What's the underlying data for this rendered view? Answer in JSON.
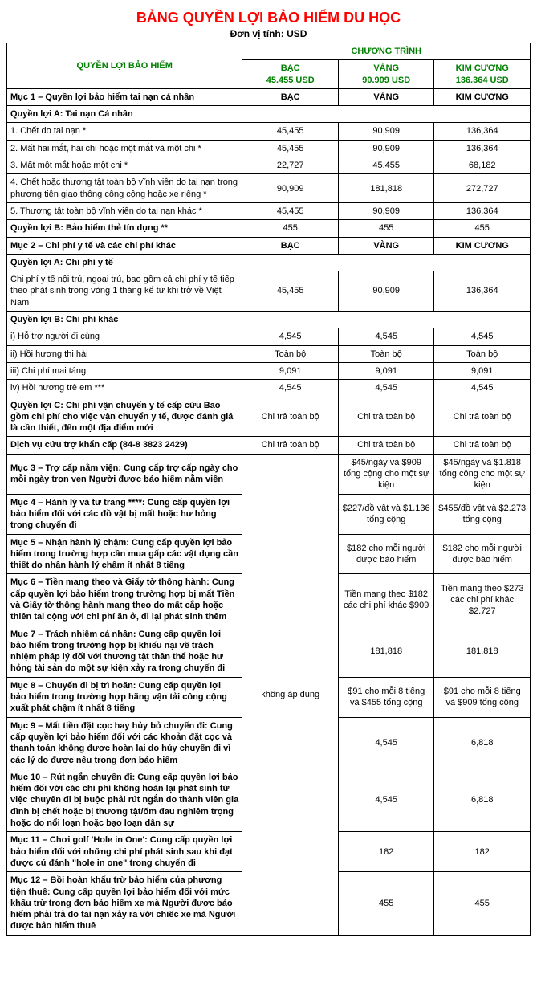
{
  "colors": {
    "title": "#ff0000",
    "header_green": "#008000",
    "text": "#000000",
    "border": "#000000",
    "background": "#ffffff"
  },
  "title": "BẢNG QUYỀN LỢI BẢO HIỂM DU HỌC",
  "subtitle": "Đơn vị tính: USD",
  "header": {
    "benefit": "QUYỀN LỢI BẢO HIỂM",
    "program": "CHƯƠNG TRÌNH",
    "tiers": [
      {
        "name": "BẠC",
        "price": "45.455 USD"
      },
      {
        "name": "VÀNG",
        "price": "90.909 USD"
      },
      {
        "name": "KIM CƯƠNG",
        "price": "136.364 USD"
      }
    ]
  },
  "rows": [
    {
      "type": "section",
      "label": "Mục 1 – Quyền lợi bảo hiểm tai nạn cá nhân",
      "vals": [
        "BẠC",
        "VÀNG",
        "KIM CƯƠNG"
      ],
      "bold_vals": true
    },
    {
      "type": "subhead",
      "label": "Quyền lợi A: Tai nạn Cá nhân"
    },
    {
      "type": "data",
      "label": "1. Chết do tai nạn *",
      "vals": [
        "45,455",
        "90,909",
        "136,364"
      ]
    },
    {
      "type": "data",
      "label": "2. Mất hai mắt, hai chi hoặc một mắt và một chi *",
      "vals": [
        "45,455",
        "90,909",
        "136,364"
      ]
    },
    {
      "type": "data",
      "label": "3. Mất một mắt hoặc một chi *",
      "vals": [
        "22,727",
        "45,455",
        "68,182"
      ]
    },
    {
      "type": "data",
      "label": "4. Chết hoặc thương tật toàn bộ vĩnh viễn do tai nạn trong phương tiện giao thông công cộng hoặc xe riêng *",
      "vals": [
        "90,909",
        "181,818",
        "272,727"
      ]
    },
    {
      "type": "data",
      "label": "5. Thương tật toàn bộ vĩnh viễn do tai nạn khác *",
      "vals": [
        "45,455",
        "90,909",
        "136,364"
      ]
    },
    {
      "type": "data",
      "label": "Quyền lợi B: Bảo hiểm thẻ tín dụng **",
      "bold_label": true,
      "vals": [
        "455",
        "455",
        "455"
      ]
    },
    {
      "type": "section",
      "label": "Mục 2 – Chi phí y tế và các chi phí khác",
      "vals": [
        "BẠC",
        "VÀNG",
        "KIM CƯƠNG"
      ],
      "bold_vals": true
    },
    {
      "type": "subhead",
      "label": "Quyền lợi A: Chi phí y tế"
    },
    {
      "type": "data",
      "label": "Chi phí y tế nội trú, ngoại trú, bao gồm cả chi phí y tế tiếp theo phát sinh trong vòng 1 tháng kể từ khi trở về Việt Nam",
      "vals": [
        "45,455",
        "90,909",
        "136,364"
      ]
    },
    {
      "type": "subhead",
      "label": "Quyền lợi B: Chi phí khác"
    },
    {
      "type": "data",
      "label": "i) Hỗ trợ người đi cùng",
      "vals": [
        "4,545",
        "4,545",
        "4,545"
      ]
    },
    {
      "type": "data",
      "label": "ii) Hồi hương thi hài",
      "vals": [
        "Toàn bộ",
        "Toàn bộ",
        "Toàn bộ"
      ]
    },
    {
      "type": "data",
      "label": "iii) Chi phí mai táng",
      "vals": [
        "9,091",
        "9,091",
        "9,091"
      ]
    },
    {
      "type": "data",
      "label": "iv) Hồi hương trẻ em ***",
      "vals": [
        "4,545",
        "4,545",
        "4,545"
      ]
    },
    {
      "type": "data",
      "label": "Quyền lợi C: Chi phí vận chuyển y tế cấp cứu Bao gồm chi phí cho việc vận chuyển y tế, được đánh giá là cần thiết, đến một địa điểm mới",
      "bold_label": true,
      "vals": [
        "Chi trả toàn bộ",
        "Chi trả toàn bộ",
        "Chi trả toàn bộ"
      ]
    },
    {
      "type": "data",
      "label": "Dịch vụ cứu trợ khẩn cấp (84-8 3823 2429)",
      "bold_label": true,
      "vals": [
        "Chi trả toàn bộ",
        "Chi trả toàn bộ",
        "Chi trả toàn bộ"
      ]
    }
  ],
  "merged_block": {
    "na_label": "không áp dụng",
    "rows": [
      {
        "label": "Mục 3 – Trợ cấp nằm viện: Cung cấp trợ cấp ngày cho mỗi ngày trọn vẹn Người được bảo hiểm nằm viện",
        "vals": [
          "$45/ngày và $909 tổng cộng cho một sự kiện",
          "$45/ngày và $1.818 tổng cộng cho một sự kiện"
        ]
      },
      {
        "label": "Mục 4 – Hành lý và tư trang ****: Cung cấp quyền lợi bảo hiểm đối với các đồ vật bị mất hoặc hư hỏng trong chuyến đi",
        "vals": [
          "$227/đồ vật và $1.136 tổng cộng",
          "$455/đồ vật và $2.273 tổng cộng"
        ]
      },
      {
        "label": "Mục 5 – Nhận hành lý chậm: Cung cấp quyền lợi bảo hiểm trong trường hợp cần mua gấp các vật dụng cần thiết do nhận hành lý chậm ít nhất 8 tiếng",
        "vals": [
          "$182 cho mỗi người được bảo hiểm",
          "$182 cho mỗi người được bảo hiểm"
        ]
      },
      {
        "label": "Mục 6 – Tiền mang theo và Giấy tờ thông hành: Cung cấp quyền lợi bảo hiểm trong trường hợp bị mất Tiền và Giấy tờ thông hành mang theo do mất cắp hoặc thiên tai cộng với chi phí ăn ở, đi lại phát sinh thêm",
        "vals": [
          "Tiền mang theo $182 các chi phí khác $909",
          "Tiền mang theo $273 các chi phí khác $2.727"
        ]
      },
      {
        "label": "Mục 7 – Trách nhiệm cá nhân: Cung cấp quyền lợi bảo hiểm trong trường hợp bị khiếu nại về trách nhiệm pháp lý đối với thương tật thân thể hoặc hư hỏng tài sản do một sự kiện xảy ra trong chuyến đi",
        "vals": [
          "181,818",
          "181,818"
        ]
      },
      {
        "label": "Mục 8 – Chuyến đi bị trì hoãn: Cung cấp quyền lợi bảo hiểm trong trường hợp hãng vận tải công cộng xuất phát chậm ít nhất 8 tiếng",
        "vals": [
          "$91 cho mỗi 8 tiếng và $455 tổng cộng",
          "$91 cho mỗi 8 tiếng và $909 tổng cộng"
        ]
      },
      {
        "label": "Mục 9 – Mất tiền đặt cọc hay hủy bỏ chuyến đi: Cung cấp quyền lợi bảo hiểm đối với các khoản đặt cọc và thanh toán không được hoàn lại do hủy chuyến đi vì các lý do được nêu trong đơn bảo hiểm",
        "vals": [
          "4,545",
          "6,818"
        ]
      },
      {
        "label": "Mục 10 – Rút ngắn chuyến đi: Cung cấp quyền lợi bảo hiểm đối với các chi phí không hoàn lại phát sinh từ việc chuyến đi bị buộc phải rút ngắn do thành viên gia đình bị chết hoặc bị thương tật/ốm đau nghiêm trọng hoặc do nổi loạn hoặc bạo loạn dân sự",
        "vals": [
          "4,545",
          "6,818"
        ]
      },
      {
        "label": "Mục 11 – Chơi golf 'Hole in One': Cung cấp quyền lợi bảo hiểm đối với những chi phí phát sinh sau khi đạt được cú đánh \"hole in one\" trong chuyến đi",
        "vals": [
          "182",
          "182"
        ]
      },
      {
        "label": "Mục 12 – Bồi hoàn khấu trừ bảo hiểm của phương tiện thuê: Cung cấp quyền lợi bảo hiểm đối với mức khấu trừ trong đơn bảo hiểm xe mà Người được bảo hiểm phải trả do tai nạn xảy ra với chiếc xe mà Người được bảo hiểm thuê",
        "vals": [
          "455",
          "455"
        ]
      }
    ]
  }
}
